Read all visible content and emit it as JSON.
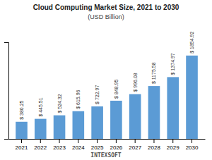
{
  "chart_data": {
    "type": "bar",
    "title": "Cloud Computing Market Size, 2021 to 2030",
    "subtitle": "(USD Billion)",
    "categories": [
      "2021",
      "2022",
      "2023",
      "2024",
      "2025",
      "2026",
      "2027",
      "2028",
      "2029",
      "2030"
    ],
    "values": [
      380.25,
      445.51,
      524.32,
      615.96,
      722.97,
      848.95,
      996.08,
      1175.58,
      1374.97,
      1854.92
    ],
    "value_labels": [
      "$ 380.25",
      "$ 445.51",
      "$ 524.32",
      "$ 615.96",
      "$ 722.97",
      "$ 848.95",
      "$ 996.08",
      "$ 1175.58",
      "$ 1374.97",
      "$ 1854.92"
    ],
    "data_labels": true,
    "color": "#5b9bd5",
    "ylim": [
      0,
      2150
    ],
    "yticks": [],
    "grid": false,
    "tick_labels": "x",
    "annotations": [
      "INTEXSOFT"
    ]
  }
}
